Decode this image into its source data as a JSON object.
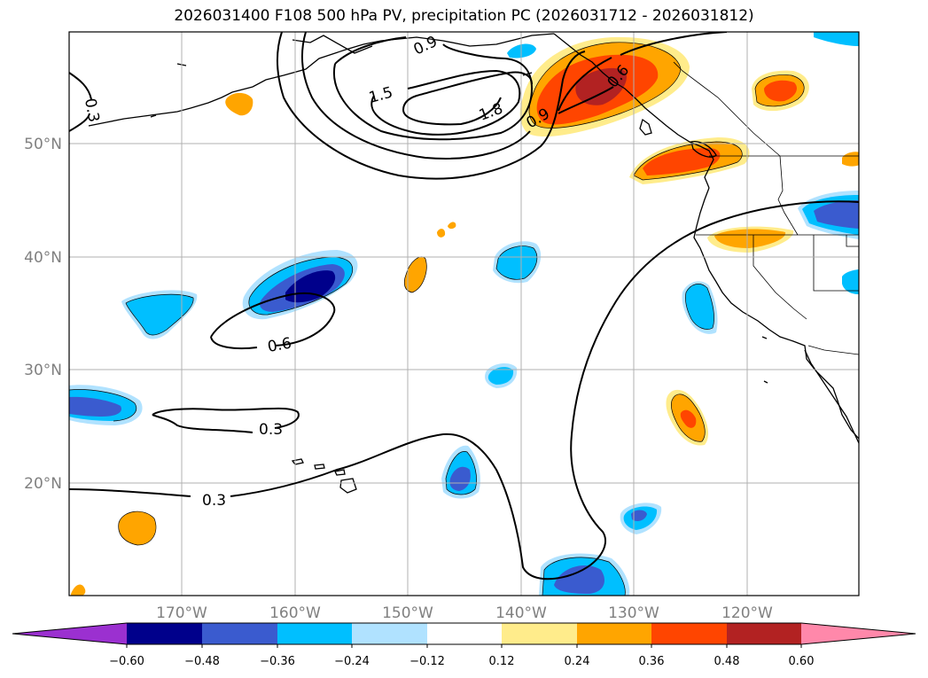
{
  "title": "2026031400 F108 500 hPa PV, precipitation PC (2026031712 - 2026031812)",
  "latitudes": [
    "50°N",
    "40°N",
    "30°N",
    "20°N"
  ],
  "longitudes": [
    "170°W",
    "160°W",
    "150°W",
    "140°W",
    "130°W",
    "120°W"
  ],
  "pv_contour_labels": [
    "0.3",
    "0.9",
    "1.5",
    "1.8",
    "0.9",
    "0.6",
    "0.6",
    "0.3",
    "0.3"
  ],
  "colorbar": {
    "ticks": [
      "−0.60",
      "−0.48",
      "−0.36",
      "−0.24",
      "−0.12",
      "0.12",
      "0.24",
      "0.36",
      "0.48",
      "0.60"
    ],
    "colors": [
      "#9b30d0",
      "#00008b",
      "#3a5bcf",
      "#00bfff",
      "#b0e2ff",
      "#ffffff",
      "#ffec8b",
      "#ffa500",
      "#ff4500",
      "#b22222",
      "#ff88aa"
    ]
  }
}
